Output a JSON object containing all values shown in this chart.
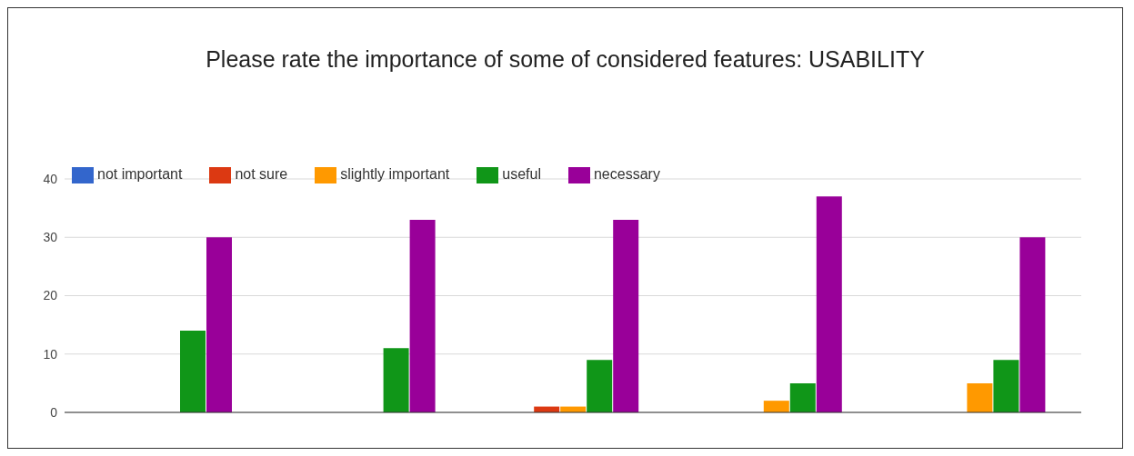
{
  "chart_data": {
    "type": "bar",
    "title": "Please rate the importance of some of considered features: USABILITY",
    "categories": [
      null,
      null,
      null,
      null,
      null
    ],
    "series": [
      {
        "name": "not important",
        "color": "#3366cc",
        "values": [
          0,
          0,
          0,
          0,
          0
        ]
      },
      {
        "name": "not sure",
        "color": "#dc3912",
        "values": [
          0,
          0,
          1,
          0,
          0
        ]
      },
      {
        "name": "slightly important",
        "color": "#ff9900",
        "values": [
          0,
          0,
          1,
          2,
          5
        ]
      },
      {
        "name": "useful",
        "color": "#109618",
        "values": [
          14,
          11,
          9,
          5,
          9
        ]
      },
      {
        "name": "necessary",
        "color": "#990099",
        "values": [
          30,
          33,
          33,
          37,
          30
        ]
      }
    ],
    "ylim": [
      0,
      40
    ],
    "yticks": [
      0,
      10,
      20,
      30,
      40
    ],
    "grid": "y",
    "legend": "top left"
  }
}
